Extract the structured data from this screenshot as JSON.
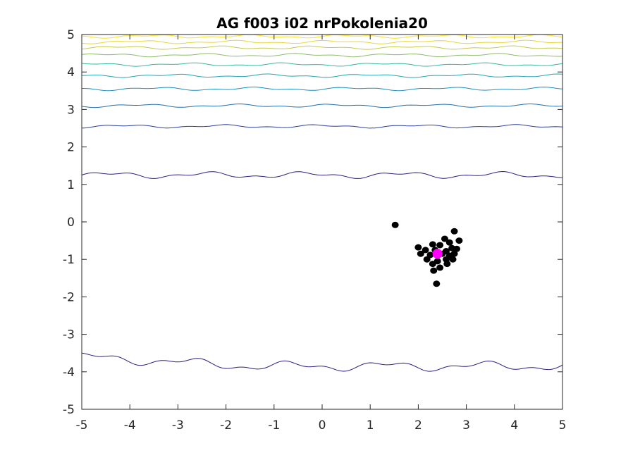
{
  "chart_data": {
    "type": "scatter",
    "title": "AG f003 i02 nrPokolenia20",
    "xlabel": "",
    "ylabel": "",
    "xlim": [
      -5,
      5
    ],
    "ylim": [
      -5,
      5
    ],
    "x_ticks": [
      "-5",
      "-4",
      "-3",
      "-2",
      "-1",
      "0",
      "1",
      "2",
      "3",
      "4",
      "5"
    ],
    "y_ticks": [
      "5",
      "4",
      "3",
      "2",
      "1",
      "0",
      "-1",
      "-2",
      "-3",
      "-4",
      "-5"
    ],
    "grid": false,
    "contour_lines": [
      {
        "level_y": 4.95,
        "color": "#f9e11e"
      },
      {
        "level_y": 4.8,
        "color": "#e5d83a"
      },
      {
        "level_y": 4.65,
        "color": "#c5c94a"
      },
      {
        "level_y": 4.45,
        "color": "#8dbb69"
      },
      {
        "level_y": 4.2,
        "color": "#35b7a1"
      },
      {
        "level_y": 3.9,
        "color": "#1ea6b4"
      },
      {
        "level_y": 3.55,
        "color": "#1a8fbd"
      },
      {
        "level_y": 3.1,
        "color": "#1f6fb0"
      },
      {
        "level_y": 2.55,
        "color": "#2a3f9c"
      },
      {
        "level_y": 1.25,
        "color": "#2a1f82"
      },
      {
        "level_y": -3.85,
        "color": "#2a1f82"
      }
    ],
    "series": [
      {
        "marker": "black-dot",
        "color": "#000000",
        "points": [
          [
            1.52,
            -0.08
          ],
          [
            2.75,
            -0.25
          ],
          [
            2.55,
            -0.45
          ],
          [
            2.65,
            -0.55
          ],
          [
            2.85,
            -0.5
          ],
          [
            2.3,
            -0.6
          ],
          [
            2.45,
            -0.62
          ],
          [
            2.0,
            -0.68
          ],
          [
            2.7,
            -0.7
          ],
          [
            2.15,
            -0.75
          ],
          [
            2.35,
            -0.75
          ],
          [
            2.58,
            -0.78
          ],
          [
            2.8,
            -0.72
          ],
          [
            2.05,
            -0.85
          ],
          [
            2.25,
            -0.88
          ],
          [
            2.5,
            -0.85
          ],
          [
            2.65,
            -0.9
          ],
          [
            2.75,
            -0.85
          ],
          [
            2.18,
            -1.0
          ],
          [
            2.4,
            -1.05
          ],
          [
            2.58,
            -1.0
          ],
          [
            2.72,
            -1.0
          ],
          [
            2.3,
            -1.12
          ],
          [
            2.6,
            -1.12
          ],
          [
            2.45,
            -1.22
          ],
          [
            2.32,
            -1.3
          ],
          [
            2.38,
            -1.65
          ]
        ]
      },
      {
        "marker": "best-dot",
        "color": "#ff00ff",
        "points": [
          [
            2.4,
            -0.85
          ]
        ]
      }
    ]
  }
}
